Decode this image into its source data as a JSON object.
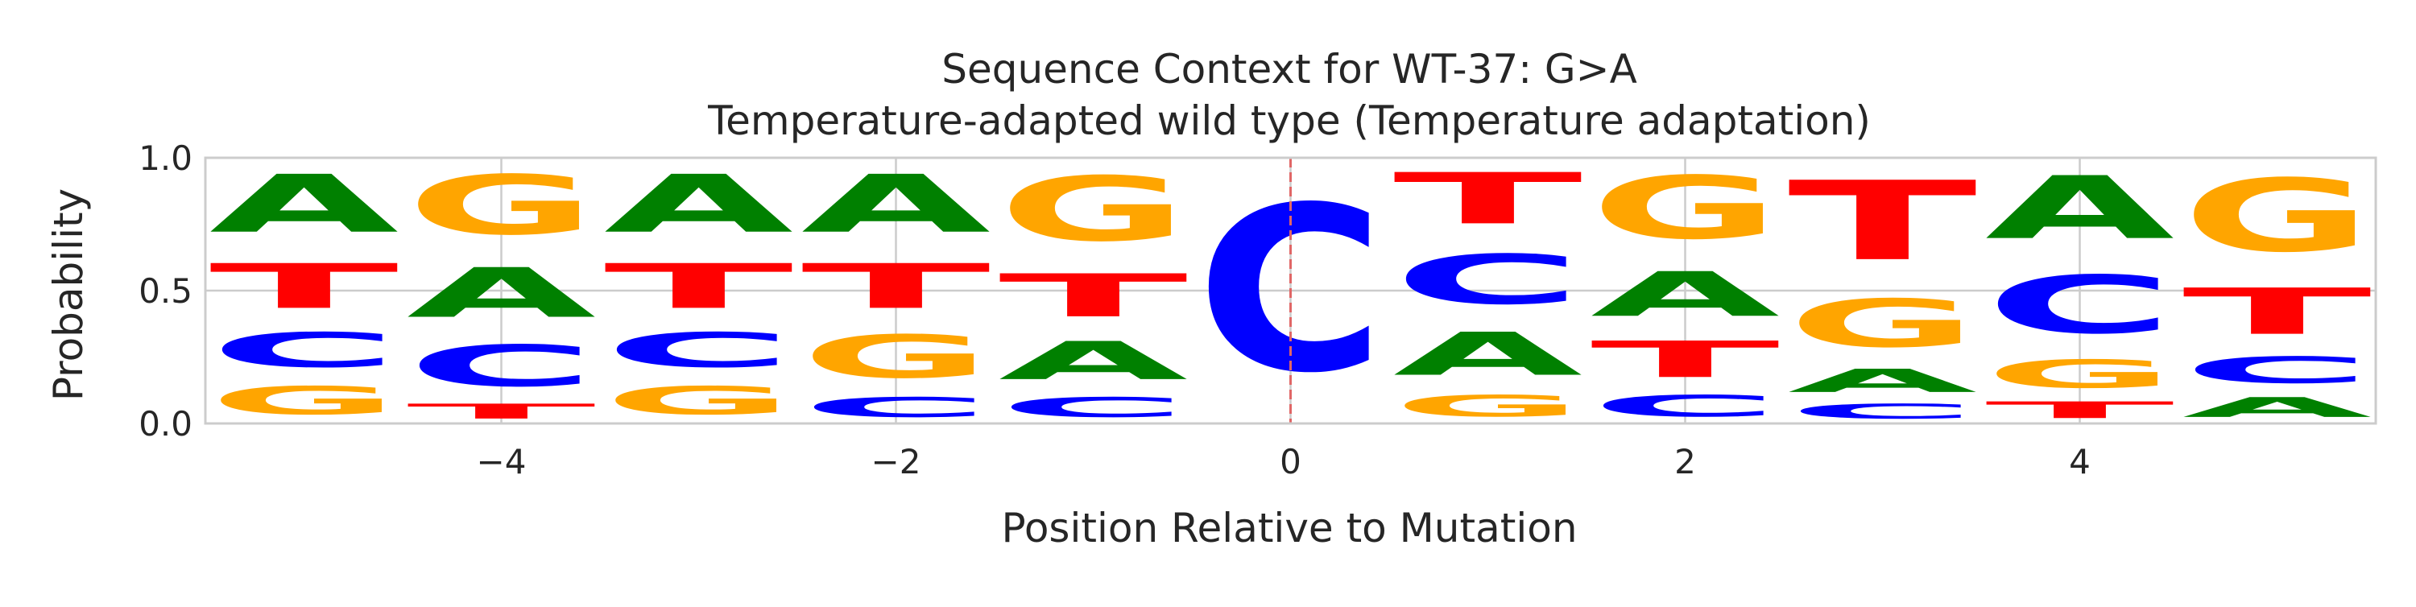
{
  "chart_data": {
    "type": "sequence-logo",
    "title": "Sequence Context for WT-37: G>A",
    "subtitle": "Temperature-adapted wild type (Temperature adaptation)",
    "xlabel": "Position Relative to Mutation",
    "ylabel": "Probability",
    "xlim": [
      -5.5,
      5.5
    ],
    "ylim": [
      0,
      1
    ],
    "xticks": [
      -4,
      -2,
      0,
      2,
      4
    ],
    "xtick_labels": [
      "−4",
      "−2",
      "0",
      "2",
      "4"
    ],
    "yticks": [
      0,
      0.5,
      1
    ],
    "ytick_labels": [
      "0.0",
      "0.5",
      "1.0"
    ],
    "grid": true,
    "mutation_line_x": 0,
    "mutation_line_color": "#e06666",
    "base_colors": {
      "A": "#008000",
      "C": "#0000ff",
      "G": "#ffa500",
      "T": "#ff0000"
    },
    "positions": [
      {
        "x": -5,
        "stack": [
          {
            "base": "G",
            "p": 0.17
          },
          {
            "base": "C",
            "p": 0.21
          },
          {
            "base": "T",
            "p": 0.27
          },
          {
            "base": "A",
            "p": 0.35
          }
        ]
      },
      {
        "x": -4,
        "stack": [
          {
            "base": "T",
            "p": 0.09
          },
          {
            "base": "C",
            "p": 0.25
          },
          {
            "base": "A",
            "p": 0.3
          },
          {
            "base": "G",
            "p": 0.36
          }
        ]
      },
      {
        "x": -3,
        "stack": [
          {
            "base": "G",
            "p": 0.17
          },
          {
            "base": "C",
            "p": 0.21
          },
          {
            "base": "T",
            "p": 0.27
          },
          {
            "base": "A",
            "p": 0.35
          }
        ]
      },
      {
        "x": -2,
        "stack": [
          {
            "base": "C",
            "p": 0.12
          },
          {
            "base": "G",
            "p": 0.26
          },
          {
            "base": "T",
            "p": 0.27
          },
          {
            "base": "A",
            "p": 0.35
          }
        ]
      },
      {
        "x": -1,
        "stack": [
          {
            "base": "C",
            "p": 0.12
          },
          {
            "base": "A",
            "p": 0.23
          },
          {
            "base": "T",
            "p": 0.26
          },
          {
            "base": "G",
            "p": 0.39
          }
        ]
      },
      {
        "x": 0,
        "stack": [
          {
            "base": "C",
            "p": 1.0
          }
        ]
      },
      {
        "x": 1,
        "stack": [
          {
            "base": "G",
            "p": 0.13
          },
          {
            "base": "A",
            "p": 0.26
          },
          {
            "base": "C",
            "p": 0.3
          },
          {
            "base": "T",
            "p": 0.31
          }
        ]
      },
      {
        "x": 2,
        "stack": [
          {
            "base": "C",
            "p": 0.13
          },
          {
            "base": "T",
            "p": 0.22
          },
          {
            "base": "A",
            "p": 0.27
          },
          {
            "base": "G",
            "p": 0.38
          }
        ]
      },
      {
        "x": 3,
        "stack": [
          {
            "base": "C",
            "p": 0.09
          },
          {
            "base": "A",
            "p": 0.14
          },
          {
            "base": "G",
            "p": 0.29
          },
          {
            "base": "T",
            "p": 0.48
          }
        ]
      },
      {
        "x": 4,
        "stack": [
          {
            "base": "T",
            "p": 0.1
          },
          {
            "base": "G",
            "p": 0.17
          },
          {
            "base": "C",
            "p": 0.35
          },
          {
            "base": "A",
            "p": 0.38
          }
        ]
      },
      {
        "x": 5,
        "stack": [
          {
            "base": "A",
            "p": 0.12
          },
          {
            "base": "C",
            "p": 0.16
          },
          {
            "base": "T",
            "p": 0.28
          },
          {
            "base": "G",
            "p": 0.44
          }
        ]
      }
    ]
  }
}
